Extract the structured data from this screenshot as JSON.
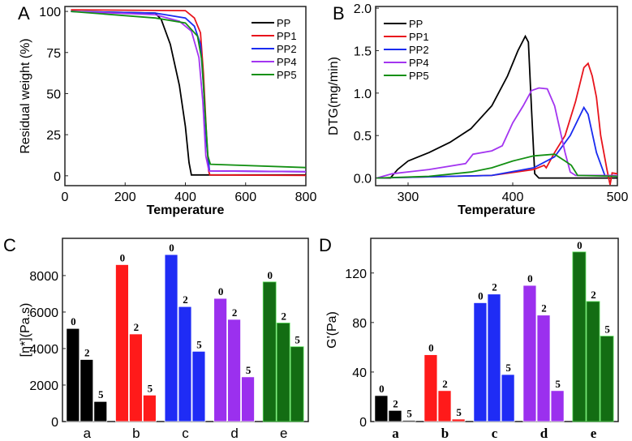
{
  "colors": {
    "PP": "#000000",
    "PP1": "#e8141c",
    "PP2": "#1a2cf0",
    "PP4": "#a335f0",
    "PP5": "#139013",
    "a": "#000000",
    "b": "#ff1a1a",
    "c": "#1f2cf5",
    "d": "#9b30ee",
    "e": "#136d13"
  },
  "chart_data": [
    {
      "panel": "A",
      "type": "line",
      "xlabel": "Temperature",
      "ylabel": "Residual weight (%)",
      "xlim": [
        0,
        800
      ],
      "ylim": [
        -6,
        103
      ],
      "xticks": [
        0,
        200,
        400,
        600,
        800
      ],
      "yticks": [
        0,
        25,
        50,
        75,
        100
      ],
      "legend": "top-right",
      "series": [
        {
          "name": "PP",
          "points": [
            [
              20,
              100
            ],
            [
              300,
              99
            ],
            [
              320,
              95
            ],
            [
              350,
              80
            ],
            [
              380,
              55
            ],
            [
              400,
              30
            ],
            [
              412,
              8
            ],
            [
              420,
              0.5
            ],
            [
              800,
              0.5
            ]
          ]
        },
        {
          "name": "PP1",
          "points": [
            [
              20,
              101
            ],
            [
              400,
              100.5
            ],
            [
              430,
              96
            ],
            [
              450,
              87
            ],
            [
              460,
              62
            ],
            [
              470,
              25
            ],
            [
              477,
              3
            ],
            [
              481,
              0.5
            ],
            [
              800,
              0.2
            ]
          ]
        },
        {
          "name": "PP2",
          "points": [
            [
              20,
              100
            ],
            [
              300,
              99
            ],
            [
              400,
              96
            ],
            [
              430,
              91
            ],
            [
              450,
              80
            ],
            [
              460,
              55
            ],
            [
              470,
              20
            ],
            [
              480,
              3
            ],
            [
              800,
              2.5
            ]
          ]
        },
        {
          "name": "PP4",
          "points": [
            [
              20,
              100
            ],
            [
              300,
              98
            ],
            [
              380,
              94
            ],
            [
              420,
              88
            ],
            [
              445,
              72
            ],
            [
              458,
              45
            ],
            [
              468,
              12
            ],
            [
              478,
              3
            ],
            [
              800,
              2.5
            ]
          ]
        },
        {
          "name": "PP5",
          "points": [
            [
              20,
              100
            ],
            [
              300,
              96
            ],
            [
              400,
              93
            ],
            [
              440,
              85
            ],
            [
              455,
              70
            ],
            [
              465,
              40
            ],
            [
              475,
              12
            ],
            [
              483,
              7
            ],
            [
              800,
              5
            ]
          ]
        }
      ]
    },
    {
      "panel": "B",
      "type": "line",
      "xlabel": "Temperature",
      "ylabel": "DTG(mg/min)",
      "xlim": [
        269,
        500
      ],
      "ylim": [
        -0.09,
        2.02
      ],
      "xticks": [
        300,
        400,
        500
      ],
      "yticks": [
        0.0,
        0.5,
        1.0,
        1.5,
        2.0
      ],
      "ytick_labels": [
        "0.0",
        "0.5",
        "1.0",
        "1.5",
        "2.0"
      ],
      "legend": "top-left",
      "series": [
        {
          "name": "PP",
          "points": [
            [
              270,
              0
            ],
            [
              283,
              0
            ],
            [
              290,
              0.1
            ],
            [
              300,
              0.2
            ],
            [
              320,
              0.3
            ],
            [
              340,
              0.42
            ],
            [
              360,
              0.58
            ],
            [
              380,
              0.85
            ],
            [
              395,
              1.2
            ],
            [
              405,
              1.5
            ],
            [
              412,
              1.67
            ],
            [
              415,
              1.6
            ],
            [
              418,
              0.8
            ],
            [
              421,
              0.05
            ],
            [
              425,
              0
            ],
            [
              500,
              0
            ]
          ]
        },
        {
          "name": "PP1",
          "points": [
            [
              270,
              0
            ],
            [
              380,
              0.03
            ],
            [
              420,
              0.1
            ],
            [
              430,
              0.15
            ],
            [
              432,
              0.12
            ],
            [
              440,
              0.3
            ],
            [
              450,
              0.5
            ],
            [
              460,
              0.9
            ],
            [
              468,
              1.3
            ],
            [
              472,
              1.35
            ],
            [
              476,
              1.2
            ],
            [
              480,
              0.95
            ],
            [
              484,
              0.5
            ],
            [
              490,
              0.1
            ],
            [
              493,
              -0.08
            ],
            [
              495,
              0.06
            ],
            [
              500,
              0.05
            ]
          ]
        },
        {
          "name": "PP2",
          "points": [
            [
              270,
              0
            ],
            [
              380,
              0.03
            ],
            [
              420,
              0.12
            ],
            [
              440,
              0.25
            ],
            [
              455,
              0.5
            ],
            [
              468,
              0.83
            ],
            [
              472,
              0.75
            ],
            [
              480,
              0.3
            ],
            [
              488,
              0.03
            ],
            [
              500,
              0.02
            ]
          ]
        },
        {
          "name": "PP4",
          "points": [
            [
              270,
              0
            ],
            [
              285,
              0.05
            ],
            [
              320,
              0.1
            ],
            [
              355,
              0.17
            ],
            [
              362,
              0.28
            ],
            [
              380,
              0.32
            ],
            [
              390,
              0.38
            ],
            [
              400,
              0.65
            ],
            [
              410,
              0.85
            ],
            [
              418,
              1.03
            ],
            [
              425,
              1.06
            ],
            [
              433,
              1.05
            ],
            [
              440,
              0.85
            ],
            [
              450,
              0.3
            ],
            [
              455,
              0.07
            ],
            [
              460,
              0.03
            ],
            [
              500,
              0.03
            ]
          ]
        },
        {
          "name": "PP5",
          "points": [
            [
              270,
              0
            ],
            [
              320,
              0.02
            ],
            [
              360,
              0.07
            ],
            [
              380,
              0.12
            ],
            [
              400,
              0.2
            ],
            [
              420,
              0.26
            ],
            [
              440,
              0.28
            ],
            [
              450,
              0.2
            ],
            [
              456,
              0.15
            ],
            [
              462,
              0.03
            ],
            [
              500,
              0.02
            ]
          ]
        }
      ]
    },
    {
      "panel": "C",
      "type": "bar",
      "xlabel": "",
      "ylabel": "[η*](Pa.s)",
      "ylim": [
        0,
        10040
      ],
      "yticks": [
        0,
        2000,
        4000,
        6000,
        8000
      ],
      "categories": [
        "a",
        "b",
        "c",
        "d",
        "e"
      ],
      "bar_labels": [
        "0",
        "2",
        "5"
      ],
      "values": [
        [
          5100,
          3400,
          1100
        ],
        [
          8600,
          4800,
          1450
        ],
        [
          9150,
          6300,
          3850
        ],
        [
          6750,
          5600,
          2450
        ],
        [
          7650,
          5400,
          4100
        ]
      ]
    },
    {
      "panel": "D",
      "type": "bar",
      "xlabel": "",
      "ylabel": "G'(Pa)",
      "ylim": [
        0,
        148
      ],
      "yticks": [
        0,
        40,
        80,
        120
      ],
      "categories": [
        "a",
        "b",
        "c",
        "d",
        "e"
      ],
      "bar_labels": [
        "0",
        "2",
        "5"
      ],
      "values": [
        [
          21,
          9,
          1
        ],
        [
          54,
          25,
          2
        ],
        [
          96,
          103,
          38
        ],
        [
          110,
          86,
          25
        ],
        [
          137,
          97,
          69
        ]
      ]
    }
  ]
}
